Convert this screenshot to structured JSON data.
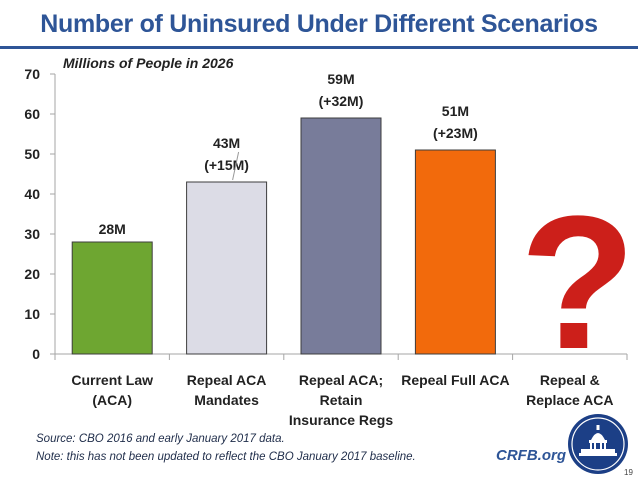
{
  "title": "Number of Uninsured Under Different Scenarios",
  "colors": {
    "title": "#2e5597",
    "question_mark": "#cc1f1a",
    "axis": "#a6a6a6",
    "seal_dark": "#1c3f86",
    "seal_light": "#ffffff"
  },
  "chart_data": {
    "type": "bar",
    "title": "Number of Uninsured Under Different Scenarios",
    "subtitle": "Millions of People in 2026",
    "ylabel": "",
    "xlabel": "",
    "ylim": [
      0,
      70
    ],
    "yticks": [
      "0",
      "10",
      "20",
      "30",
      "40",
      "50",
      "60",
      "70"
    ],
    "grid": false,
    "categories": [
      [
        "Current Law",
        "(ACA)"
      ],
      [
        "Repeal ACA",
        "Mandates"
      ],
      [
        "Repeal ACA;",
        "Retain",
        "Insurance Regs"
      ],
      [
        "Repeal Full ACA"
      ],
      [
        "Repeal &",
        "Replace ACA"
      ]
    ],
    "values": [
      28,
      43,
      59,
      51,
      null
    ],
    "bar_colors": [
      "#6ea631",
      "#dcdce6",
      "#787c9a",
      "#f26a0c",
      null
    ],
    "data_labels": [
      [
        "28M"
      ],
      [
        "43M",
        "(+15M)"
      ],
      [
        "59M",
        "(+32M)"
      ],
      [
        "51M",
        "(+23M)"
      ],
      []
    ],
    "unknown_marker": "?"
  },
  "footer": {
    "source": "Source: CBO 2016 and early January 2017 data.",
    "note": "Note: this has not been updated to reflect the CBO January 2017 baseline.",
    "brand": "CRFB.org",
    "page": "19"
  }
}
